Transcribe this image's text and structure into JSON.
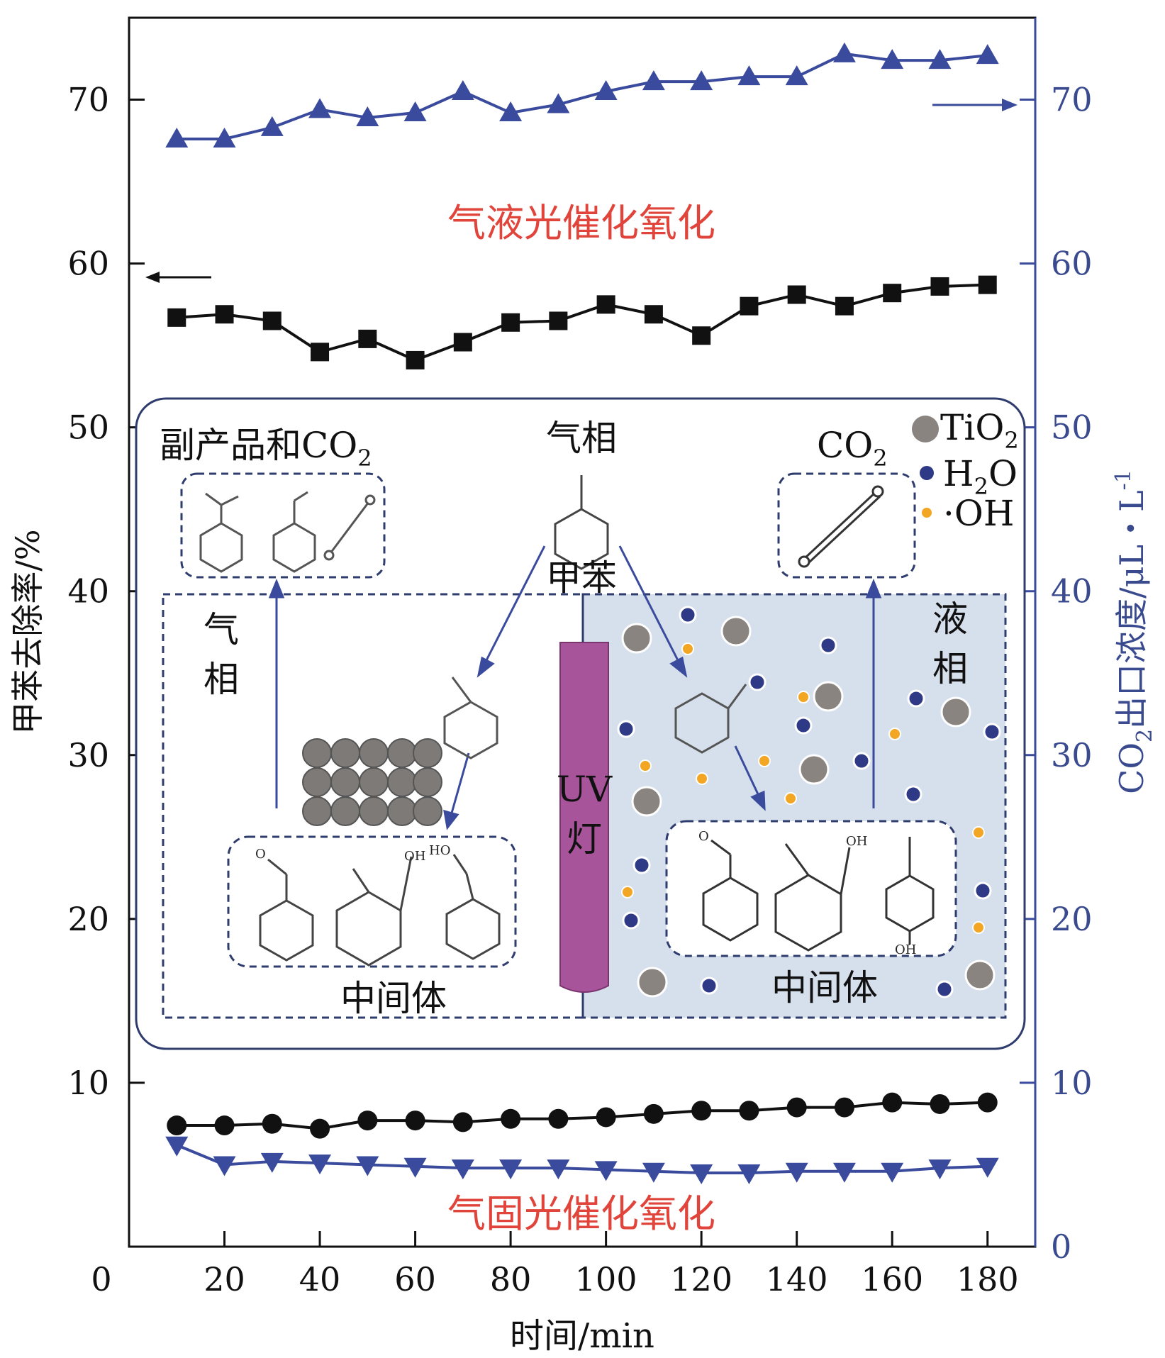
{
  "colors": {
    "black_series": "#111111",
    "blue_series": "#3a4a9c",
    "red_text": "#e0443a",
    "liquid_fill": "#d6dfec",
    "dash": "#2f3c6e",
    "uv_lamp": "#a8549a",
    "tio2": "#8a8480",
    "h2o": "#2e3a86",
    "oh": "#f3a524"
  },
  "chart_data": {
    "type": "line",
    "title": "",
    "xlabel": "时间/min",
    "ylabel_left": "甲苯去除率/%",
    "ylabel_right_parts": {
      "pre": "CO",
      "sub": "2",
      "post": "出口浓度/μL・L",
      "sup": "-1"
    },
    "xlim": [
      0,
      190
    ],
    "ylim_left": [
      0,
      75
    ],
    "ylim_right": [
      0,
      75
    ],
    "x_ticks": [
      0,
      20,
      40,
      60,
      80,
      100,
      120,
      140,
      160,
      180
    ],
    "x_tick_labels": [
      "0",
      "20",
      "40",
      "60",
      "80",
      "100",
      "120",
      "140",
      "160",
      "180"
    ],
    "y_left_ticks": [
      10,
      20,
      30,
      40,
      50,
      60,
      70
    ],
    "y_left_tick_labels": [
      "10",
      "20",
      "30",
      "40",
      "50",
      "60",
      "70"
    ],
    "y_right_ticks": [
      0,
      10,
      20,
      30,
      40,
      50,
      60,
      70
    ],
    "y_right_tick_labels": [
      "0",
      "10",
      "20",
      "30",
      "40",
      "50",
      "60",
      "70"
    ],
    "x": [
      10,
      20,
      30,
      40,
      50,
      60,
      70,
      80,
      90,
      100,
      110,
      120,
      130,
      140,
      150,
      160,
      170,
      180
    ],
    "series": [
      {
        "name": "气液光催化氧化 甲苯去除率",
        "axis": "left",
        "marker": "square",
        "color": "#111111",
        "values": [
          56.7,
          56.9,
          56.5,
          54.6,
          55.4,
          54.1,
          55.2,
          56.4,
          56.5,
          57.5,
          56.9,
          55.6,
          57.4,
          58.1,
          57.4,
          58.2,
          58.6,
          58.7
        ]
      },
      {
        "name": "气液光催化氧化 CO2出口浓度",
        "axis": "right",
        "marker": "triangle-up",
        "color": "#3a4a9c",
        "values": [
          67.6,
          67.6,
          68.3,
          69.4,
          68.9,
          69.2,
          70.5,
          69.2,
          69.7,
          70.5,
          71.1,
          71.1,
          71.4,
          71.4,
          72.8,
          72.4,
          72.4,
          72.7
        ]
      },
      {
        "name": "气固光催化氧化 甲苯去除率",
        "axis": "left",
        "marker": "circle",
        "color": "#111111",
        "values": [
          7.4,
          7.4,
          7.5,
          7.2,
          7.7,
          7.7,
          7.6,
          7.8,
          7.8,
          7.9,
          8.1,
          8.3,
          8.3,
          8.5,
          8.5,
          8.8,
          8.7,
          8.8
        ]
      },
      {
        "name": "气固光催化氧化 CO2出口浓度",
        "axis": "right",
        "marker": "triangle-down",
        "color": "#3a4a9c",
        "values": [
          6.2,
          5.0,
          5.2,
          5.1,
          5.0,
          4.9,
          4.8,
          4.8,
          4.8,
          4.7,
          4.6,
          4.5,
          4.5,
          4.6,
          4.6,
          4.6,
          4.8,
          4.9
        ]
      }
    ],
    "annotations": {
      "upper_label": "气液光催化氧化",
      "lower_label": "气固光催化氧化"
    }
  },
  "diagram": {
    "byproducts_label": "副产品和CO",
    "byproducts_sub": "2",
    "gas_phase_top": "气相",
    "toluene": "甲苯",
    "co2_main": "CO",
    "co2_sub": "2",
    "gas_side_1": "气",
    "gas_side_2": "相",
    "liquid_side_1": "液",
    "liquid_side_2": "相",
    "uv_1": "UV",
    "uv_2": "灯",
    "intermediate_left": "中间体",
    "intermediate_right": "中间体",
    "legend": {
      "tio2_main": "TiO",
      "tio2_sub": "2",
      "h2o_pre": "H",
      "h2o_sub": "2",
      "h2o_post": "O",
      "oh": "·OH"
    },
    "chem": {
      "o1": "O",
      "oh_hoa": "OH",
      "ho": "HO",
      "o2": "O",
      "oh_b": "OH",
      "oh_c": "OH"
    }
  }
}
